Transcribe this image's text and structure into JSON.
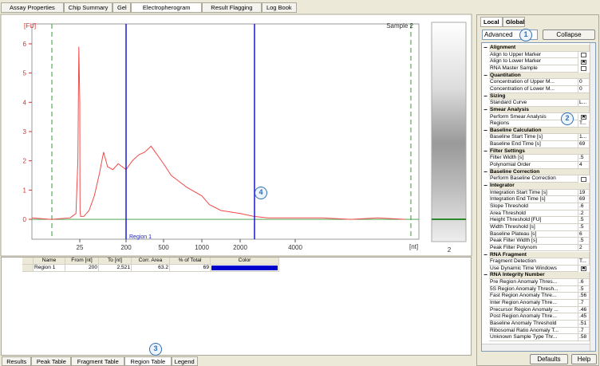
{
  "top_tabs": [
    "Assay Properties",
    "Chip Summary",
    "Gel",
    "Electropherogram",
    "Result Flagging",
    "Log Book"
  ],
  "electropherogram": {
    "y_unit": "[FU]",
    "x_unit": "[nt]",
    "sample": "Sample 2",
    "region_label": "Region 1",
    "ylim": [
      -0.68,
      6.68
    ],
    "yticks": [
      0,
      1,
      2,
      3,
      4,
      5,
      6
    ],
    "xticks": [
      25,
      200,
      500,
      1000,
      2000,
      4000
    ],
    "color": "#f04a4a",
    "curve": {
      "x": [
        0,
        10,
        20,
        23,
        24,
        24.5,
        25,
        25.5,
        26,
        28,
        40,
        60,
        80,
        100,
        115,
        130,
        150,
        170,
        200,
        250,
        300,
        350,
        400,
        450,
        500,
        600,
        700,
        800,
        1000,
        1200,
        1500,
        2000,
        2500,
        3000,
        4000,
        5000,
        6000,
        7000,
        8000
      ],
      "y": [
        0.05,
        0.0,
        0.05,
        0.2,
        2,
        5.9,
        4,
        1,
        0.3,
        0.1,
        0.1,
        0.3,
        0.8,
        1.6,
        2.3,
        1.8,
        1.7,
        1.9,
        1.7,
        2.0,
        2.2,
        2.3,
        2.5,
        2.2,
        1.9,
        1.5,
        1.3,
        1.1,
        0.8,
        0.5,
        0.3,
        0.2,
        0.1,
        0.05,
        0.05,
        0.05,
        0.0,
        0.05,
        0.0
      ]
    }
  },
  "gel": {
    "lane": "2"
  },
  "region_table": {
    "headers": [
      "Name",
      "From [nt]",
      "To [nt]",
      "Corr. Area",
      "% of Total",
      "Color"
    ],
    "rows": [
      [
        "Region 1",
        200,
        {
          "value": 2521,
          "label": "2,521"
        },
        63.2,
        69,
        "#0000cc"
      ]
    ]
  },
  "bottom_tabs": [
    "Results",
    "Peak Table",
    "Fragment Table",
    "Region Table",
    "Legend"
  ],
  "panel": {
    "tabs": [
      "Local",
      "Global"
    ],
    "mode": "Advanced",
    "collapse": "Collapse",
    "sections": [
      {
        "title": "Alignment",
        "rows": [
          {
            "label": "Align to Upper Marker",
            "checked": false
          },
          {
            "label": "Align to Lower Marker",
            "checked": true
          },
          {
            "label": "RNA Master Sample",
            "checked": false
          }
        ]
      },
      {
        "title": "Quantitation",
        "rows": [
          {
            "label": "Concentration of Upper M...",
            "value": "0"
          },
          {
            "label": "Concentration of Lower M...",
            "value": "0"
          }
        ]
      },
      {
        "title": "Sizing",
        "rows": [
          {
            "label": "Standard Curve",
            "value": "L..."
          }
        ]
      },
      {
        "title": "Smear Analysis",
        "rows": [
          {
            "label": "Perform Smear Analysis",
            "checked": true
          },
          {
            "label": "Regions",
            "value": "T..."
          }
        ]
      },
      {
        "title": "Baseline Calculation",
        "rows": [
          {
            "label": "Baseline Start Time [s]",
            "value": "1..."
          },
          {
            "label": "Baseline End Time [s]",
            "value": "69"
          }
        ]
      },
      {
        "title": "Filter Settings",
        "rows": [
          {
            "label": "Filter Width [s]",
            "value": ".5"
          },
          {
            "label": "Polynomial Order",
            "value": "4"
          }
        ]
      },
      {
        "title": "Baseline Correction",
        "rows": [
          {
            "label": "Perform Baseline Correction",
            "checked": false
          }
        ]
      },
      {
        "title": "Integrator",
        "rows": [
          {
            "label": "Integration Start Time [s]",
            "value": "19"
          },
          {
            "label": "Integration End Time [s]",
            "value": "69"
          },
          {
            "label": "Slope Threshold",
            "value": ".6"
          },
          {
            "label": "Area Threshold",
            "value": ".2"
          },
          {
            "label": "Height Threshold [FU]",
            "value": ".5"
          },
          {
            "label": "Width Threshold [s]",
            "value": ".5"
          },
          {
            "label": "Baseline Plateau [s]",
            "value": "6"
          },
          {
            "label": "Peak Filter Width [s]",
            "value": ".5"
          },
          {
            "label": "Peak Filter Polynom",
            "value": "2"
          }
        ]
      },
      {
        "title": "RNA Fragment",
        "rows": [
          {
            "label": "Fragment Detection",
            "value": "T..."
          },
          {
            "label": "Use Dynamic Time Windows",
            "checked": true
          }
        ]
      },
      {
        "title": "RNA Integrity Number",
        "rows": [
          {
            "label": "Pre Region Anomaly Thres...",
            "value": ".6"
          },
          {
            "label": "5S Region Anomaly Thresh...",
            "value": ".5"
          },
          {
            "label": "Fast Region Anomaly Thre...",
            "value": ".56"
          },
          {
            "label": "Inter Region Anomaly Thre...",
            "value": ".7"
          },
          {
            "label": "Precursor Region Anomaly ...",
            "value": ".46"
          },
          {
            "label": "Post Region Anomaly Thre...",
            "value": ".45"
          },
          {
            "label": "Baseline Anomaly Threshold",
            "value": ".51"
          },
          {
            "label": "Ribosomal Ratio Anomaly T...",
            "value": ".7"
          },
          {
            "label": "Unknown Sample Type Thr...",
            "value": ".58"
          }
        ]
      }
    ],
    "buttons": [
      "Defaults",
      "Help"
    ]
  },
  "callouts": [
    "1",
    "2",
    "3",
    "4"
  ]
}
